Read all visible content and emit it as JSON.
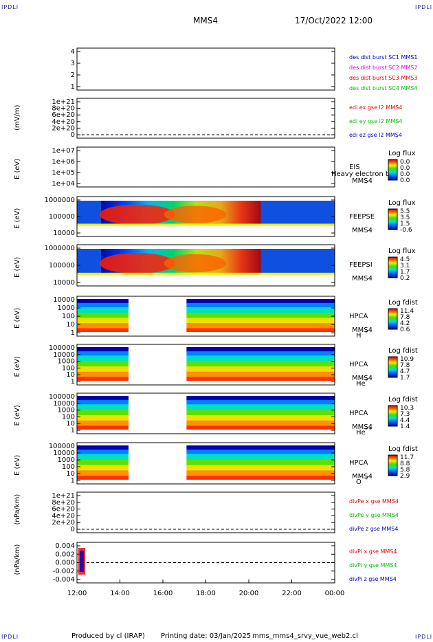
{
  "corner_tl": "IPDLI",
  "corner_tr": "IPDLI",
  "corner_bl": "IPDLI",
  "corner_br": "IPDLI",
  "header": {
    "spacecraft": "MMS4",
    "date": "17/Oct/2022 12:00"
  },
  "footer": {
    "produced": "Produced by cl (IRAP)",
    "printing": "Printing date: 03/Jan/2025",
    "file": "mms_mms4_srvy_vue_web2.cl"
  },
  "x_axis": {
    "ticks": [
      "12:00",
      "14:00",
      "16:00",
      "18:00",
      "20:00",
      "22:00",
      "00:00"
    ],
    "range_hours": [
      12,
      24
    ]
  },
  "colors": {
    "red": "#e00000",
    "green": "#00c000",
    "blue": "#0000c0",
    "magenta": "#e000e0",
    "spec_low": "#0000a0",
    "spec_high": "#a00000"
  },
  "chart_data": [
    {
      "type": "line",
      "id": "burst",
      "yticks": [
        "4",
        "3",
        "2",
        "1"
      ],
      "legend": [
        {
          "text": "des dist burst SC1 MMS1",
          "color": "#0000c0"
        },
        {
          "text": "des dist burst SC2 MMS2",
          "color": "#e000e0"
        },
        {
          "text": "des dist burst SC3 MMS3",
          "color": "#e00000"
        },
        {
          "text": "des dist burst SC4 MMS4",
          "color": "#00c000"
        }
      ]
    },
    {
      "type": "line",
      "id": "edi",
      "ylabel": "(mV/m)",
      "yticks": [
        "1e+21",
        "8e+20",
        "6e+20",
        "4e+20",
        "2e+20",
        "0"
      ],
      "legend": [
        {
          "text": "edi ex gse l2 MMS4",
          "color": "#e00000"
        },
        {
          "text": "edi ey gse l2 MMS4",
          "color": "#00c000"
        },
        {
          "text": "edi ez gse l2 MMS4",
          "color": "#0000c0"
        }
      ]
    },
    {
      "type": "heatmap",
      "id": "eis",
      "ylabel": "E (eV)",
      "yticks": [
        "1e+07",
        "1e+06",
        "1e+05",
        "1e+04"
      ],
      "label1": "EIS",
      "label2": "MMS4",
      "overlay": "Heavy electron to",
      "cbar_title": "Log flux",
      "cbar_ticks": [
        "0.0",
        "0.0",
        "0.0",
        "0.0"
      ]
    },
    {
      "type": "heatmap",
      "id": "feepse",
      "ylabel": "E (eV)",
      "yticks": [
        "1000000",
        "100000",
        "10000"
      ],
      "label1": "FEEPSE",
      "label2": "MMS4",
      "cbar_title": "Log flux",
      "cbar_ticks": [
        "5.5",
        "3.5",
        "1.5",
        "-0.6"
      ]
    },
    {
      "type": "heatmap",
      "id": "feepsi",
      "ylabel": "E (eV)",
      "yticks": [
        "1000000",
        "100000",
        "10000"
      ],
      "label1": "FEEPSI",
      "label2": "MMS4",
      "cbar_title": "Log flux",
      "cbar_ticks": [
        "4.5",
        "3.1",
        "1.7",
        "0.2"
      ]
    },
    {
      "type": "heatmap",
      "id": "hpca_h",
      "ylabel": "E (eV)",
      "yticks": [
        "10000",
        "1000",
        "100",
        "10",
        "1"
      ],
      "label1": "HPCA",
      "label2": "MMS4",
      "species": "H",
      "charge": "+",
      "cbar_title": "Log fdist",
      "cbar_ticks": [
        "11.4",
        "7.8",
        "4.2",
        "0.6"
      ],
      "gap_hours": [
        14.4,
        17.1
      ]
    },
    {
      "type": "heatmap",
      "id": "hpca_he",
      "ylabel": "E (eV)",
      "yticks": [
        "100000",
        "10000",
        "1000",
        "100",
        "10",
        "1"
      ],
      "label1": "HPCA",
      "label2": "MMS4",
      "species": "He",
      "charge": "+",
      "cbar_title": "Log fdist",
      "cbar_ticks": [
        "10.9",
        "7.8",
        "4.7",
        "1.7"
      ],
      "gap_hours": [
        14.4,
        17.1
      ]
    },
    {
      "type": "heatmap",
      "id": "hpca_hepp",
      "ylabel": "E (eV)",
      "yticks": [
        "100000",
        "10000",
        "1000",
        "100",
        "10",
        "1"
      ],
      "label1": "HPCA",
      "label2": "MMS4",
      "species": "He",
      "charge": "++",
      "cbar_title": "Log fdist",
      "cbar_ticks": [
        "10.3",
        "7.3",
        "4.4",
        "1.4"
      ],
      "gap_hours": [
        14.4,
        17.1
      ]
    },
    {
      "type": "heatmap",
      "id": "hpca_o",
      "ylabel": "E (eV)",
      "yticks": [
        "100000",
        "10000",
        "1000",
        "100",
        "10",
        "1"
      ],
      "label1": "HPCA",
      "label2": "MMS4",
      "species": "O",
      "charge": "+",
      "cbar_title": "Log fdist",
      "cbar_ticks": [
        "11.7",
        "8.8",
        "5.8",
        "2.9"
      ],
      "gap_hours": [
        14.4,
        17.1
      ]
    },
    {
      "type": "line",
      "id": "divpe",
      "ylabel": "(nPa/km)",
      "yticks": [
        "1e+21",
        "8e+20",
        "6e+20",
        "4e+20",
        "2e+20",
        "0"
      ],
      "legend": [
        {
          "text": "divPe x gse MMS4",
          "color": "#e00000"
        },
        {
          "text": "divPe y gse MMS4",
          "color": "#00c000"
        },
        {
          "text": "divPe z gse MMS4",
          "color": "#0000c0"
        }
      ]
    },
    {
      "type": "line",
      "id": "divpi",
      "ylabel": "(nPa/km)",
      "yticks": [
        "0.004",
        "0.002",
        "0.000",
        "-0.002",
        "-0.004"
      ],
      "legend": [
        {
          "text": "divPi x gse MMS4",
          "color": "#e00000"
        },
        {
          "text": "divPi y gse MMS4",
          "color": "#00c000"
        },
        {
          "text": "divPi z gse MMS4",
          "color": "#0000c0"
        }
      ]
    }
  ]
}
